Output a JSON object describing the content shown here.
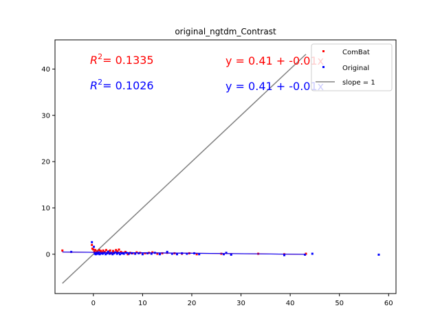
{
  "chart_data": {
    "type": "scatter",
    "title": "original_ngtdm_Contrast",
    "xlabel": "",
    "ylabel": "",
    "xlim": [
      -7.8,
      61.5
    ],
    "ylim": [
      -8.5,
      46.3
    ],
    "xticks": [
      0,
      10,
      20,
      30,
      40,
      50,
      60
    ],
    "yticks": [
      0,
      10,
      20,
      30,
      40
    ],
    "grid": false,
    "legend_position": "top-right",
    "legend": [
      "ComBat",
      "Original",
      "slope = 1"
    ],
    "annotations": {
      "combat_r2_label": "R",
      "combat_r2_value": "= 0.1335",
      "original_r2_label": "R",
      "original_r2_value": "= 0.1026",
      "combat_eq": "y = 0.41 + -0.01x",
      "original_eq": "y = 0.41 + -0.01x",
      "superscript": "2"
    },
    "identity_line": {
      "name": "slope = 1",
      "x": [
        -6.3,
        43.2
      ],
      "y": [
        -6.3,
        43.2
      ],
      "color": "#808080"
    },
    "series": [
      {
        "name": "ComBat",
        "color": "#ff0000",
        "fit": {
          "intercept": 0.41,
          "slope": -0.01,
          "x": [
            -6.3,
            43.2
          ]
        },
        "points": [
          [
            -6.3,
            0.8
          ],
          [
            -0.3,
            2.0
          ],
          [
            -0.2,
            1.2
          ],
          [
            0.0,
            1.0
          ],
          [
            0.2,
            0.5
          ],
          [
            0.4,
            0.9
          ],
          [
            0.6,
            0.2
          ],
          [
            0.8,
            0.6
          ],
          [
            1.0,
            0.3
          ],
          [
            1.2,
            0.9
          ],
          [
            1.5,
            0.7
          ],
          [
            1.8,
            0.4
          ],
          [
            2.0,
            0.8
          ],
          [
            2.3,
            0.5
          ],
          [
            2.6,
            0.9
          ],
          [
            2.9,
            0.3
          ],
          [
            3.1,
            0.6
          ],
          [
            3.4,
            0.8
          ],
          [
            3.7,
            0.2
          ],
          [
            4.0,
            0.7
          ],
          [
            4.3,
            0.4
          ],
          [
            4.6,
            0.9
          ],
          [
            4.9,
            0.6
          ],
          [
            5.2,
            1.0
          ],
          [
            5.6,
            0.5
          ],
          [
            6.0,
            0.3
          ],
          [
            6.5,
            0.5
          ],
          [
            7.0,
            0.0
          ],
          [
            7.5,
            0.3
          ],
          [
            8.0,
            0.2
          ],
          [
            8.8,
            0.4
          ],
          [
            9.5,
            0.3
          ],
          [
            10.5,
            0.2
          ],
          [
            11.3,
            0.3
          ],
          [
            12.0,
            0.4
          ],
          [
            13.0,
            0.1
          ],
          [
            14.0,
            0.2
          ],
          [
            15.0,
            0.3
          ],
          [
            16.5,
            0.2
          ],
          [
            18.0,
            0.1
          ],
          [
            19.5,
            0.2
          ],
          [
            21.0,
            0.0
          ],
          [
            26.0,
            0.1
          ],
          [
            28.0,
            0.0
          ],
          [
            33.5,
            0.1
          ],
          [
            38.8,
            0.0
          ],
          [
            43.2,
            0.1
          ]
        ]
      },
      {
        "name": "Original",
        "color": "#0000ff",
        "fit": {
          "intercept": 0.41,
          "slope": -0.01,
          "x": [
            -6.3,
            43.2
          ]
        },
        "points": [
          [
            -4.5,
            0.5
          ],
          [
            -0.3,
            2.6
          ],
          [
            0.1,
            1.6
          ],
          [
            0.3,
            0.1
          ],
          [
            0.5,
            0.0
          ],
          [
            0.7,
            0.3
          ],
          [
            0.9,
            0.1
          ],
          [
            1.1,
            0.4
          ],
          [
            1.3,
            0.0
          ],
          [
            1.6,
            0.2
          ],
          [
            1.9,
            0.1
          ],
          [
            2.2,
            0.3
          ],
          [
            2.5,
            0.0
          ],
          [
            2.8,
            0.2
          ],
          [
            3.0,
            0.5
          ],
          [
            3.3,
            0.1
          ],
          [
            3.6,
            0.3
          ],
          [
            3.9,
            0.0
          ],
          [
            4.2,
            0.2
          ],
          [
            4.5,
            0.4
          ],
          [
            4.8,
            0.1
          ],
          [
            5.1,
            0.3
          ],
          [
            5.4,
            0.0
          ],
          [
            5.8,
            0.2
          ],
          [
            6.2,
            0.1
          ],
          [
            6.7,
            0.3
          ],
          [
            7.2,
            0.1
          ],
          [
            7.8,
            0.2
          ],
          [
            8.5,
            0.1
          ],
          [
            9.2,
            0.2
          ],
          [
            10.0,
            0.0
          ],
          [
            11.0,
            0.2
          ],
          [
            11.8,
            0.1
          ],
          [
            12.5,
            0.3
          ],
          [
            13.5,
            0.0
          ],
          [
            15.0,
            0.5
          ],
          [
            16.0,
            0.1
          ],
          [
            17.0,
            0.0
          ],
          [
            18.0,
            0.2
          ],
          [
            19.0,
            0.1
          ],
          [
            20.5,
            0.2
          ],
          [
            21.5,
            0.0
          ],
          [
            26.5,
            0.0
          ],
          [
            27.0,
            0.3
          ],
          [
            28.0,
            -0.1
          ],
          [
            38.8,
            -0.2
          ],
          [
            43.0,
            -0.1
          ],
          [
            44.5,
            0.1
          ],
          [
            58.0,
            -0.1
          ]
        ]
      }
    ]
  }
}
